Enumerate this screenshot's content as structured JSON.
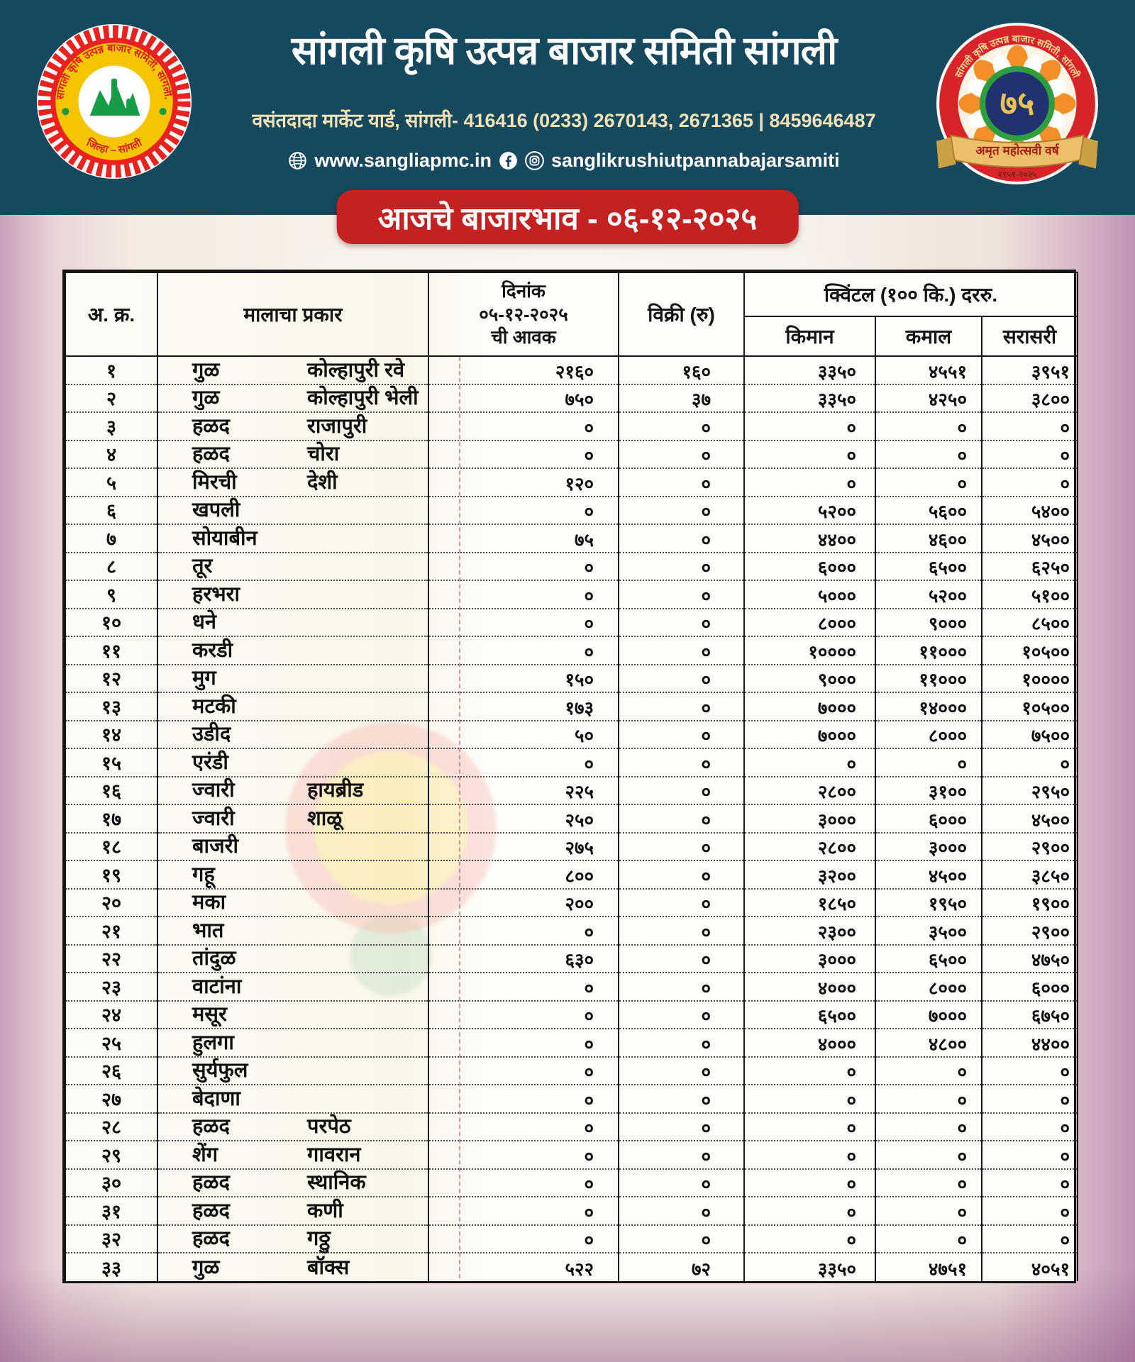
{
  "header": {
    "title": "सांगली कृषि उत्पन्न बाजार समिती सांगली",
    "address": "वसंतदादा मार्केट यार्ड, सांगली- 416416 (0233) 2670143, 2671365 | 8459646487",
    "website": "www.sangliapmc.in",
    "social_handle": "sanglikrushiutpannabajarsamiti",
    "left_seal": {
      "ring_top": "सांगली कृषि उत्पन्न बाजार समिती, सांगली.",
      "ring_bottom": "जिल्हा – सांगली"
    },
    "right_badge": {
      "ring_text": "सांगली कृषि उत्पन्न बाजार समिती, सांगली",
      "number": "७५",
      "ribbon_text": "अमृत महोत्सवी वर्ष",
      "years": "१९५१-२०२५"
    }
  },
  "banner": {
    "text": "आजचे बाजारभाव - ०६-१२-२०२५"
  },
  "colors": {
    "header_teal": "#16485e",
    "banner_red": "#c42122",
    "seal_red": "#e8231f",
    "seal_yellow": "#f6c400",
    "address_cream": "#f2e2b6",
    "badge_blue": "#20336f",
    "ribbon_gold": "#ecc06a"
  },
  "table": {
    "headers": {
      "sr": "अ. क्र.",
      "type": "मालाचा प्रकार",
      "arrival": "दिनांक\n०५-१२-२०२५\nची आवक",
      "sale": "विक्री (रु)",
      "quintal": "क्विंटल (१०० कि.) दररु.",
      "min": "किमान",
      "max": "कमाल",
      "avg": "सरासरी"
    },
    "rows": [
      {
        "sr": "१",
        "name": "गुळ",
        "variety": "कोल्हापुरी रवे",
        "arrival": "२१६०",
        "sale": "१६०",
        "min": "३३५०",
        "max": "४५५१",
        "avg": "३९५१"
      },
      {
        "sr": "२",
        "name": "गुळ",
        "variety": "कोल्हापुरी भेली",
        "arrival": "७५०",
        "sale": "३७",
        "min": "३३५०",
        "max": "४२५०",
        "avg": "३८००"
      },
      {
        "sr": "३",
        "name": "हळद",
        "variety": "राजापुरी",
        "arrival": "०",
        "sale": "०",
        "min": "०",
        "max": "०",
        "avg": "०"
      },
      {
        "sr": "४",
        "name": "हळद",
        "variety": "चोरा",
        "arrival": "०",
        "sale": "०",
        "min": "०",
        "max": "०",
        "avg": "०"
      },
      {
        "sr": "५",
        "name": "मिरची",
        "variety": "देशी",
        "arrival": "१२०",
        "sale": "०",
        "min": "०",
        "max": "०",
        "avg": "०"
      },
      {
        "sr": "६",
        "name": "खपली",
        "variety": "",
        "arrival": "०",
        "sale": "०",
        "min": "५२००",
        "max": "५६००",
        "avg": "५४००"
      },
      {
        "sr": "७",
        "name": "सोयाबीन",
        "variety": "",
        "arrival": "७५",
        "sale": "०",
        "min": "४४००",
        "max": "४६००",
        "avg": "४५००"
      },
      {
        "sr": "८",
        "name": "तूर",
        "variety": "",
        "arrival": "०",
        "sale": "०",
        "min": "६०००",
        "max": "६५००",
        "avg": "६२५०"
      },
      {
        "sr": "९",
        "name": "हरभरा",
        "variety": "",
        "arrival": "०",
        "sale": "०",
        "min": "५०००",
        "max": "५२००",
        "avg": "५१००"
      },
      {
        "sr": "१०",
        "name": "धने",
        "variety": "",
        "arrival": "०",
        "sale": "०",
        "min": "८०००",
        "max": "९०००",
        "avg": "८५००"
      },
      {
        "sr": "११",
        "name": "करडी",
        "variety": "",
        "arrival": "०",
        "sale": "०",
        "min": "१००००",
        "max": "११०००",
        "avg": "१०५००"
      },
      {
        "sr": "१२",
        "name": "मुग",
        "variety": "",
        "arrival": "१५०",
        "sale": "०",
        "min": "९०००",
        "max": "११०००",
        "avg": "१००००"
      },
      {
        "sr": "१३",
        "name": "मटकी",
        "variety": "",
        "arrival": "१७३",
        "sale": "०",
        "min": "७०००",
        "max": "१४०००",
        "avg": "१०५००"
      },
      {
        "sr": "१४",
        "name": "उडीद",
        "variety": "",
        "arrival": "५०",
        "sale": "०",
        "min": "७०००",
        "max": "८०००",
        "avg": "७५००"
      },
      {
        "sr": "१५",
        "name": "एरंडी",
        "variety": "",
        "arrival": "०",
        "sale": "०",
        "min": "०",
        "max": "०",
        "avg": "०"
      },
      {
        "sr": "१६",
        "name": "ज्वारी",
        "variety": "हायब्रीड",
        "arrival": "२२५",
        "sale": "०",
        "min": "२८००",
        "max": "३१००",
        "avg": "२९५०"
      },
      {
        "sr": "१७",
        "name": "ज्वारी",
        "variety": "शाळू",
        "arrival": "२५०",
        "sale": "०",
        "min": "३०००",
        "max": "६०००",
        "avg": "४५००"
      },
      {
        "sr": "१८",
        "name": "बाजरी",
        "variety": "",
        "arrival": "२७५",
        "sale": "०",
        "min": "२८००",
        "max": "३०००",
        "avg": "२९००"
      },
      {
        "sr": "१९",
        "name": "गहू",
        "variety": "",
        "arrival": "८००",
        "sale": "०",
        "min": "३२००",
        "max": "४५००",
        "avg": "३८५०"
      },
      {
        "sr": "२०",
        "name": "मका",
        "variety": "",
        "arrival": "२००",
        "sale": "०",
        "min": "१८५०",
        "max": "१९५०",
        "avg": "१९००"
      },
      {
        "sr": "२१",
        "name": "भात",
        "variety": "",
        "arrival": "०",
        "sale": "०",
        "min": "२३००",
        "max": "३५००",
        "avg": "२९००"
      },
      {
        "sr": "२२",
        "name": "तांदुळ",
        "variety": "",
        "arrival": "६३०",
        "sale": "०",
        "min": "३०००",
        "max": "६५००",
        "avg": "४७५०"
      },
      {
        "sr": "२३",
        "name": "वाटांना",
        "variety": "",
        "arrival": "०",
        "sale": "०",
        "min": "४०००",
        "max": "८०००",
        "avg": "६०००"
      },
      {
        "sr": "२४",
        "name": "मसूर",
        "variety": "",
        "arrival": "०",
        "sale": "०",
        "min": "६५००",
        "max": "७०००",
        "avg": "६७५०"
      },
      {
        "sr": "२५",
        "name": "हुलगा",
        "variety": "",
        "arrival": "०",
        "sale": "०",
        "min": "४०००",
        "max": "४८००",
        "avg": "४४००"
      },
      {
        "sr": "२६",
        "name": "सुर्यफुल",
        "variety": "",
        "arrival": "०",
        "sale": "०",
        "min": "०",
        "max": "०",
        "avg": "०"
      },
      {
        "sr": "२७",
        "name": "बेदाणा",
        "variety": "",
        "arrival": "०",
        "sale": "०",
        "min": "०",
        "max": "०",
        "avg": "०"
      },
      {
        "sr": "२८",
        "name": "हळद",
        "variety": "परपेठ",
        "arrival": "०",
        "sale": "०",
        "min": "०",
        "max": "०",
        "avg": "०"
      },
      {
        "sr": "२९",
        "name": "शेंग",
        "variety": "गावरान",
        "arrival": "०",
        "sale": "०",
        "min": "०",
        "max": "०",
        "avg": "०"
      },
      {
        "sr": "३०",
        "name": "हळद",
        "variety": "स्थानिक",
        "arrival": "०",
        "sale": "०",
        "min": "०",
        "max": "०",
        "avg": "०"
      },
      {
        "sr": "३१",
        "name": "हळद",
        "variety": "कणी",
        "arrival": "०",
        "sale": "०",
        "min": "०",
        "max": "०",
        "avg": "०"
      },
      {
        "sr": "३२",
        "name": "हळद",
        "variety": "गठ्ठु",
        "arrival": "०",
        "sale": "०",
        "min": "०",
        "max": "०",
        "avg": "०"
      },
      {
        "sr": "३३",
        "name": "गुळ",
        "variety": "बॉक्स",
        "arrival": "५२२",
        "sale": "७२",
        "min": "३३५०",
        "max": "४७५१",
        "avg": "४०५१"
      }
    ]
  }
}
